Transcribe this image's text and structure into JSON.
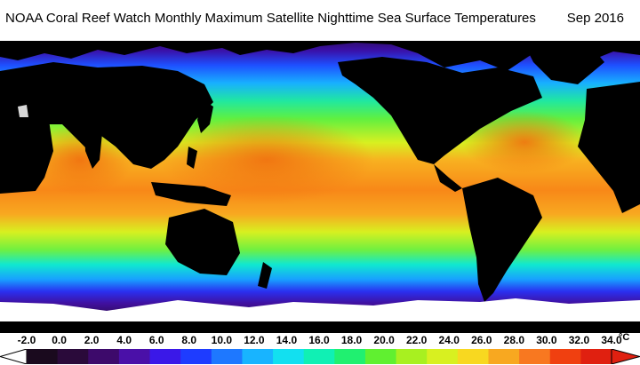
{
  "title": {
    "main": "NOAA Coral Reef Watch Monthly Maximum Satellite Nighttime Sea Surface Temperatures",
    "date": "Sep 2016"
  },
  "scale": {
    "labels": [
      "-2.0",
      "0.0",
      "2.0",
      "4.0",
      "6.0",
      "8.0",
      "10.0",
      "12.0",
      "14.0",
      "16.0",
      "18.0",
      "20.0",
      "22.0",
      "24.0",
      "26.0",
      "28.0",
      "30.0",
      "32.0",
      "34.0"
    ],
    "unit": "°C",
    "min": -2.0,
    "max": 34.0,
    "colors": [
      "#1a0a1e",
      "#2a0a3a",
      "#3d0a6b",
      "#4a10a8",
      "#3a18e8",
      "#1e3cff",
      "#1e78ff",
      "#18b4ff",
      "#12e0f0",
      "#10f0b4",
      "#20f070",
      "#60f030",
      "#a8f020",
      "#d8f020",
      "#f8d820",
      "#f8a820",
      "#f87820",
      "#f04010",
      "#e02010"
    ]
  },
  "map": {
    "colors": {
      "ocean_warm": "#f8a020",
      "ocean_hot": "#f07010",
      "ocean_temperate": "#50e040",
      "ocean_mild": "#a0f020",
      "ocean_cool": "#10d0e0",
      "ocean_cold": "#1e60ff",
      "ocean_polar": "#5010b0",
      "land": "#000000",
      "ice": "#ffffff"
    },
    "icons": [
      "land-mask",
      "ice-mask",
      "sst-field"
    ]
  }
}
